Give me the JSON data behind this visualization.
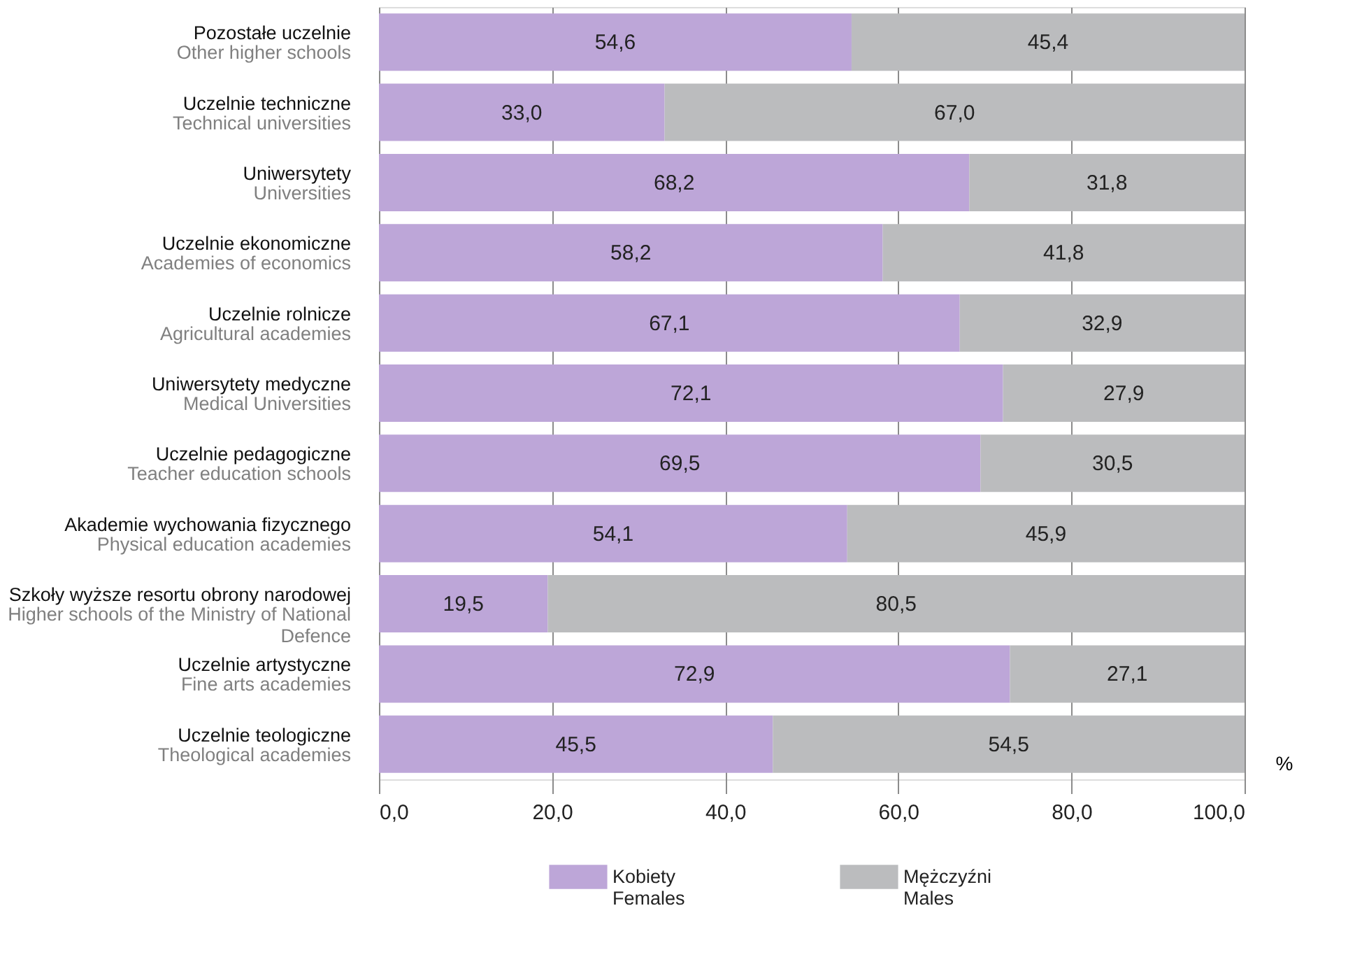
{
  "chart_data": {
    "type": "bar",
    "orientation": "horizontal",
    "stacked": true,
    "grid": "x",
    "legend": "bottom",
    "xlabel": "%",
    "categories": [
      "Pozostałe uczelnie\nOther higher schools",
      "Uczelnie techniczne\nTechnical universities",
      "Uniwersytety\nUniversities",
      "Uczelnie ekonomiczne\nAcademies of economics",
      "Uczelnie rolnicze\nAgricultural academies",
      "Uniwersytety medyczne\nMedical Universities",
      "Uczelnie pedagogiczne\nTeacher education schools",
      "Akademie wychowania fizycznego\nPhysical education academies",
      "Szkoły wyższe resortu obrony narodowej\nHigher schools of the Ministry of National\nDefence",
      "Uczelnie artystyczne\nFine arts academies",
      "Uczelnie teologiczne\nTheological academies"
    ],
    "series": [
      {
        "name": "Kobiety\nFemales",
        "color": "#bda6d8",
        "values": [
          54.6,
          33.0,
          68.2,
          58.2,
          67.1,
          72.1,
          69.5,
          54.1,
          19.5,
          72.9,
          45.5
        ],
        "value_labels": [
          "54,6",
          "33,0",
          "68,2",
          "58,2",
          "67,1",
          "72,1",
          "69,5",
          "54,1",
          "19,5",
          "72,9",
          "45,5"
        ]
      },
      {
        "name": "Mężczyźni\nMales",
        "color": "#bbbcbe",
        "values": [
          45.4,
          67.0,
          31.8,
          41.8,
          32.9,
          27.9,
          30.5,
          45.9,
          80.5,
          27.1,
          54.5
        ],
        "value_labels": [
          "45,4",
          "67,0",
          "31,8",
          "41,8",
          "32,9",
          "27,9",
          "30,5",
          "45,9",
          "80,5",
          "27,1",
          "54,5"
        ]
      }
    ],
    "xlim": [
      0,
      100
    ],
    "xticks": [
      {
        "value": 0,
        "label": "0,0"
      },
      {
        "value": 20,
        "label": "20,0"
      },
      {
        "value": 40,
        "label": "40,0"
      },
      {
        "value": 60,
        "label": "60,0"
      },
      {
        "value": 80,
        "label": "80,0"
      },
      {
        "value": 100,
        "label": "100,0"
      }
    ]
  }
}
